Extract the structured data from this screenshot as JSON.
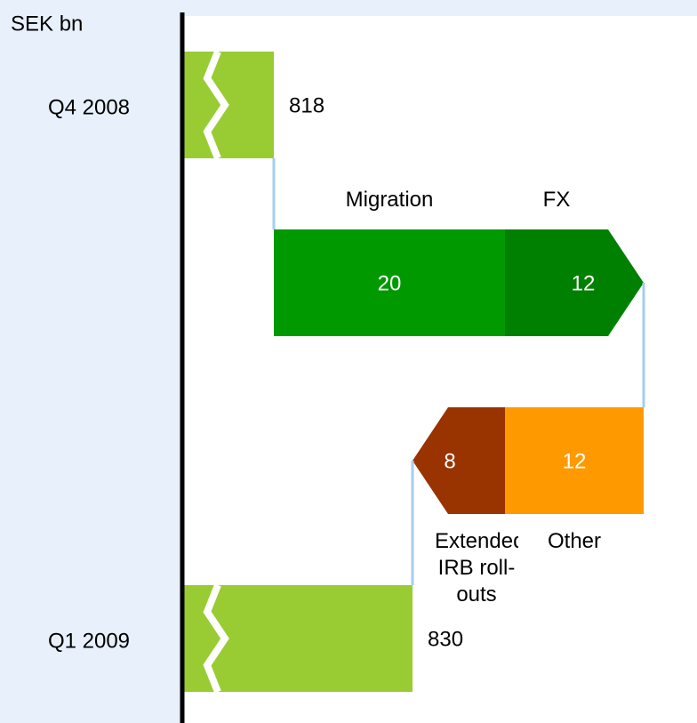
{
  "chart_data": {
    "type": "waterfall",
    "unit_label": "SEK bn",
    "categories": [
      "Q4 2008",
      "Migration",
      "FX",
      "Other",
      "Extended IRB roll-outs",
      "Q1 2009"
    ],
    "values": [
      818,
      20,
      12,
      -12,
      -8,
      830
    ],
    "value_labels": [
      "818",
      "20",
      "12",
      "12",
      "8",
      "830"
    ],
    "totals": [
      true,
      false,
      false,
      false,
      false,
      true
    ],
    "colors": [
      "#99cc33",
      "#009900",
      "#008000",
      "#ff9900",
      "#993300",
      "#99cc33"
    ]
  }
}
